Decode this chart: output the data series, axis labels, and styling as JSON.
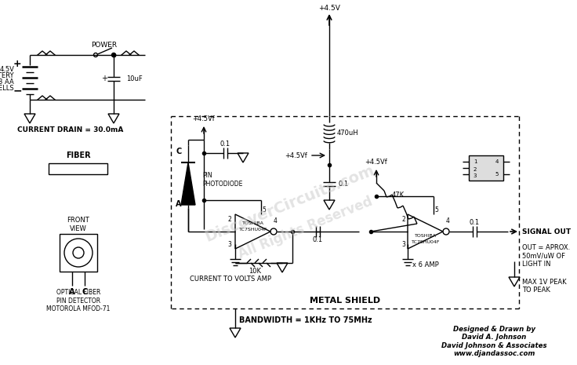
{
  "background_color": "#ffffff",
  "line_color": "#000000",
  "designer_text": "Designed & Drawn by\nDavid A. Johnson\nDavid Johnson & Associates\nwww.djandassoc.com",
  "bandwidth_text": "BANDWIDTH = 1KHz TO 75MHz",
  "metal_shield_text": "METAL SHIELD",
  "signal_out_text": "SIGNAL OUT",
  "out_notes": "OUT = APROX.\n50mV/uW OF\nLIGHT IN",
  "max_notes": "MAX 1V PEAK\nTO PEAK",
  "current_drain": "CURRENT DRAIN = 30.0mA",
  "power_label": "POWER",
  "fiber_label": "FIBER"
}
